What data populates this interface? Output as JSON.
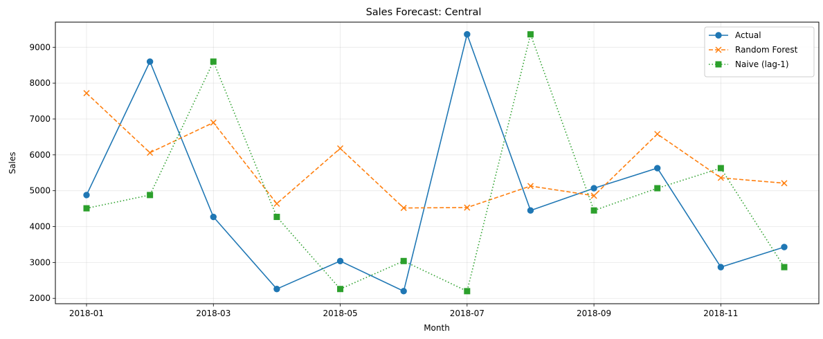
{
  "chart_data": {
    "type": "line",
    "title": "Sales Forecast: Central",
    "xlabel": "Month",
    "ylabel": "Sales",
    "x": [
      "2018-01",
      "2018-02",
      "2018-03",
      "2018-04",
      "2018-05",
      "2018-06",
      "2018-07",
      "2018-08",
      "2018-09",
      "2018-10",
      "2018-11",
      "2018-12"
    ],
    "x_ticks": [
      "2018-01",
      "2018-03",
      "2018-05",
      "2018-07",
      "2018-09",
      "2018-11"
    ],
    "y_ticks": [
      2000,
      3000,
      4000,
      5000,
      6000,
      7000,
      8000,
      9000
    ],
    "ylim": [
      1850,
      9700
    ],
    "grid": true,
    "legend_position": "top-right",
    "series": [
      {
        "name": "Actual",
        "color": "#1f77b4",
        "line_style": "solid",
        "marker": "circle",
        "values": [
          4880,
          8600,
          4270,
          2260,
          3040,
          2200,
          9360,
          4450,
          5070,
          5630,
          2870,
          3430
        ]
      },
      {
        "name": "Random Forest",
        "color": "#ff7f0e",
        "line_style": "dashed",
        "marker": "x",
        "values": [
          7720,
          6060,
          6900,
          4640,
          6180,
          4520,
          4530,
          5130,
          4860,
          6580,
          5360,
          5210
        ]
      },
      {
        "name": "Naive (lag-1)",
        "color": "#2ca02c",
        "line_style": "dotted",
        "marker": "square",
        "values": [
          4510,
          4880,
          8600,
          4270,
          2260,
          3040,
          2200,
          9360,
          4450,
          5070,
          5630,
          2870
        ]
      }
    ]
  }
}
